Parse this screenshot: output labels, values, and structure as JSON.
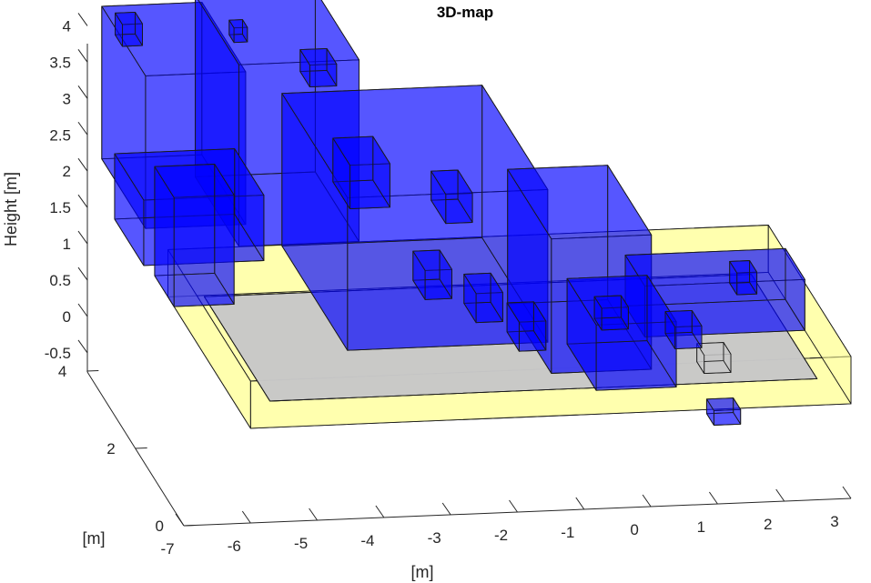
{
  "chart_data": {
    "type": "3d-box-map",
    "title": "3D-map",
    "xlabel": "[m]",
    "ylabel": "[m]",
    "zlabel": "Height [m]",
    "x_ticks": [
      "-7",
      "-6",
      "-5",
      "-4",
      "-3",
      "-2",
      "-1",
      "0",
      "1",
      "2",
      "3"
    ],
    "y_ticks": [
      "0",
      "2",
      "4"
    ],
    "z_ticks": [
      "4",
      "3.5",
      "3",
      "2.5",
      "2",
      "1.5",
      "1",
      "0.5",
      "0",
      "-0.5"
    ],
    "xlim": [
      -7,
      3
    ],
    "ylim": [
      0,
      4.5
    ],
    "zlim": [
      -0.5,
      4
    ],
    "grid": false,
    "colors": {
      "obstacle": "#0000ff",
      "environment": "#ffff99",
      "floor": "#c8c8c8",
      "edge": "#1a1a1a",
      "text": "#262626"
    },
    "series": [
      {
        "category": "environment",
        "boxes": [
          {
            "x": [
              -6,
              3
            ],
            "y": [
              0,
              3.4
            ],
            "z": [
              -0.2,
              0.45
            ]
          }
        ]
      },
      {
        "category": "floor",
        "boxes": [
          {
            "x": [
              -5.6,
              2.6
            ],
            "y": [
              0.3,
              3.0
            ],
            "z": [
              0,
              0
            ]
          },
          {
            "x": [
              1.2,
              1.6
            ],
            "y": [
              1.1,
              1.4
            ],
            "z": [
              -0.3,
              -0.05
            ]
          }
        ]
      },
      {
        "category": "obstacle",
        "boxes": [
          {
            "x": [
              -6.7,
              -5.2
            ],
            "y": [
              2.4,
              4.2
            ],
            "z": [
              1.3,
              3.4
            ]
          },
          {
            "x": [
              -5.3,
              -3.5
            ],
            "y": [
              2.4,
              4.2
            ],
            "z": [
              1.0,
              3.5
            ]
          },
          {
            "x": [
              -6.8,
              -5.0
            ],
            "y": [
              2.2,
              3.4
            ],
            "z": [
              0.9,
              1.8
            ]
          },
          {
            "x": [
              -4.0,
              -1.0
            ],
            "y": [
              1.5,
              4.2
            ],
            "z": [
              0.0,
              2.1
            ]
          },
          {
            "x": [
              -1.2,
              0.3
            ],
            "y": [
              0.8,
              2.6
            ],
            "z": [
              -0.05,
              1.8
            ]
          },
          {
            "x": [
              0.2,
              2.6
            ],
            "y": [
              0.8,
              1.6
            ],
            "z": [
              0.4,
              1.1
            ]
          },
          {
            "x": [
              -0.6,
              0.6
            ],
            "y": [
              0.6,
              1.8
            ],
            "z": [
              -0.2,
              0.7
            ]
          },
          {
            "x": [
              -6.2,
              -5.3
            ],
            "y": [
              2.6,
              3.4
            ],
            "z": [
              0.1,
              1.6
            ]
          },
          {
            "x": [
              -6.5,
              -6.2
            ],
            "y": [
              3.9,
              4.2
            ],
            "z": [
              3.0,
              3.3
            ]
          },
          {
            "x": [
              -4.9,
              -4.7
            ],
            "y": [
              3.7,
              3.9
            ],
            "z": [
              3.1,
              3.3
            ]
          },
          {
            "x": [
              -3.8,
              -3.4
            ],
            "y": [
              3.6,
              4.0
            ],
            "z": [
              2.5,
              2.8
            ]
          },
          {
            "x": [
              -3.6,
              -3.0
            ],
            "y": [
              2.5,
              3.2
            ],
            "z": [
              1.4,
              2.0
            ]
          },
          {
            "x": [
              -2.2,
              -1.8
            ],
            "y": [
              2.4,
              3.0
            ],
            "z": [
              1.2,
              1.6
            ]
          },
          {
            "x": [
              -2.8,
              -2.4
            ],
            "y": [
              1.6,
              2.1
            ],
            "z": [
              0.6,
              1.0
            ]
          },
          {
            "x": [
              -2.0,
              -1.6
            ],
            "y": [
              1.7,
              2.2
            ],
            "z": [
              0.2,
              0.6
            ]
          },
          {
            "x": [
              -1.5,
              -1.1
            ],
            "y": [
              1.3,
              1.8
            ],
            "z": [
              0.0,
              0.4
            ]
          },
          {
            "x": [
              -0.3,
              0.1
            ],
            "y": [
              1.2,
              1.5
            ],
            "z": [
              0.3,
              0.6
            ]
          },
          {
            "x": [
              1.8,
              2.1
            ],
            "y": [
              1.4,
              1.7
            ],
            "z": [
              0.6,
              0.9
            ]
          },
          {
            "x": [
              0.8,
              1.2
            ],
            "y": [
              1.2,
              1.6
            ],
            "z": [
              0.0,
              0.3
            ]
          },
          {
            "x": [
              0.8,
              1.2
            ],
            "y": [
              -0.4,
              -0.1
            ],
            "z": [
              -0.2,
              0.0
            ]
          }
        ]
      }
    ]
  }
}
